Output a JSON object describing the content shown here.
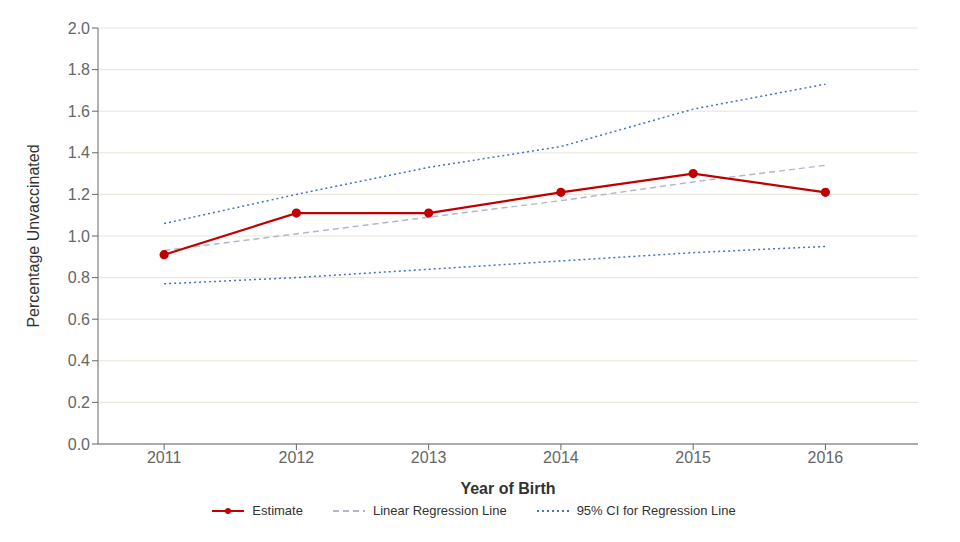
{
  "chart_data": {
    "type": "line",
    "xlabel": "Year of Birth",
    "ylabel": "Percentage Unvaccinated",
    "x": [
      2011,
      2012,
      2013,
      2014,
      2015,
      2016
    ],
    "xlim": [
      2010.5,
      2016.7
    ],
    "xticks": [
      2011,
      2012,
      2013,
      2014,
      2015,
      2016
    ],
    "ylim": [
      0.0,
      2.0
    ],
    "yticks": [
      {
        "value": 0.0,
        "label": "0.0"
      },
      0.2,
      0.4,
      0.6,
      0.8,
      {
        "value": 1.0,
        "label": "1.0"
      },
      1.2,
      1.4,
      1.6,
      1.8,
      {
        "value": 2.0,
        "label": "2.0"
      }
    ],
    "grid": true,
    "series": [
      {
        "name": "Estimate",
        "color": "#C00000",
        "line_style": "solid",
        "marker": "circle",
        "values": [
          0.91,
          1.11,
          1.11,
          1.21,
          1.3,
          1.21
        ]
      },
      {
        "name": "Linear Regression Line",
        "color": "#B0B8C8",
        "line_style": "dashed",
        "values": [
          0.93,
          1.01,
          1.09,
          1.17,
          1.26,
          1.34
        ]
      },
      {
        "name": "95% CI for Regression Line",
        "color": "#4472C4",
        "line_style": "dotted",
        "upper": [
          1.06,
          1.2,
          1.33,
          1.43,
          1.61,
          1.73
        ],
        "lower": [
          0.77,
          0.8,
          0.84,
          0.88,
          0.92,
          0.95
        ]
      }
    ]
  }
}
